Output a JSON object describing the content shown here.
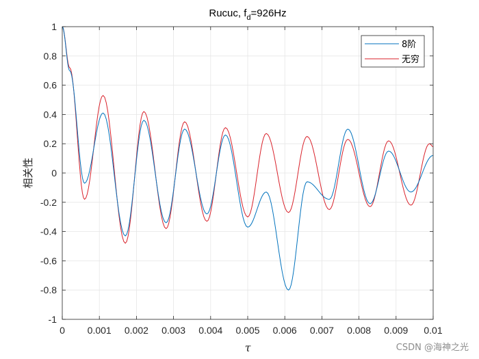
{
  "chart_data": {
    "type": "line",
    "title_main": "Rucuc, f",
    "title_sub": "d",
    "title_rest": "=926Hz",
    "xlabel": "τ",
    "ylabel": "相关性",
    "xlim": [
      0,
      0.01
    ],
    "ylim": [
      -1,
      1
    ],
    "x_ticks": [
      0,
      0.001,
      0.002,
      0.003,
      0.004,
      0.005,
      0.006,
      0.007,
      0.008,
      0.009,
      0.01
    ],
    "x_tick_labels": [
      "0",
      "0.001",
      "0.002",
      "0.003",
      "0.004",
      "0.005",
      "0.006",
      "0.007",
      "0.008",
      "0.009",
      "0.01"
    ],
    "y_ticks": [
      -1,
      -0.8,
      -0.6,
      -0.4,
      -0.2,
      0,
      0.2,
      0.4,
      0.6,
      0.8,
      1
    ],
    "y_tick_labels": [
      "-1",
      "-0.8",
      "-0.6",
      "-0.4",
      "-0.2",
      "0",
      "0.2",
      "0.4",
      "0.6",
      "0.8",
      "1"
    ],
    "grid": true,
    "legend_position": "top-right",
    "series": [
      {
        "name": "8阶",
        "color": "#0072BD",
        "x": [
          0,
          0.0002,
          0.0006,
          0.0011,
          0.0017,
          0.0022,
          0.0028,
          0.0033,
          0.0039,
          0.0044,
          0.005,
          0.0055,
          0.0061,
          0.0066,
          0.0072,
          0.0077,
          0.0083,
          0.0088,
          0.0094,
          0.01
        ],
        "y": [
          1,
          0.7,
          -0.07,
          0.41,
          -0.43,
          0.36,
          -0.34,
          0.3,
          -0.28,
          0.26,
          -0.37,
          -0.13,
          -0.8,
          -0.06,
          -0.18,
          0.3,
          -0.21,
          0.15,
          -0.13,
          0.12
        ]
      },
      {
        "name": "无穷",
        "color": "#D9212A",
        "x": [
          0,
          0.0002,
          0.0006,
          0.0011,
          0.0017,
          0.0022,
          0.0028,
          0.0033,
          0.0039,
          0.0044,
          0.005,
          0.0055,
          0.0061,
          0.0066,
          0.0072,
          0.0077,
          0.0083,
          0.0088,
          0.0094,
          0.0099,
          0.01
        ],
        "y": [
          1,
          0.72,
          -0.18,
          0.53,
          -0.48,
          0.42,
          -0.38,
          0.35,
          -0.33,
          0.31,
          -0.3,
          0.27,
          -0.27,
          0.25,
          -0.25,
          0.23,
          -0.23,
          0.22,
          -0.22,
          0.2,
          0.18
        ]
      }
    ]
  },
  "watermark": "CSDN @海神之光"
}
